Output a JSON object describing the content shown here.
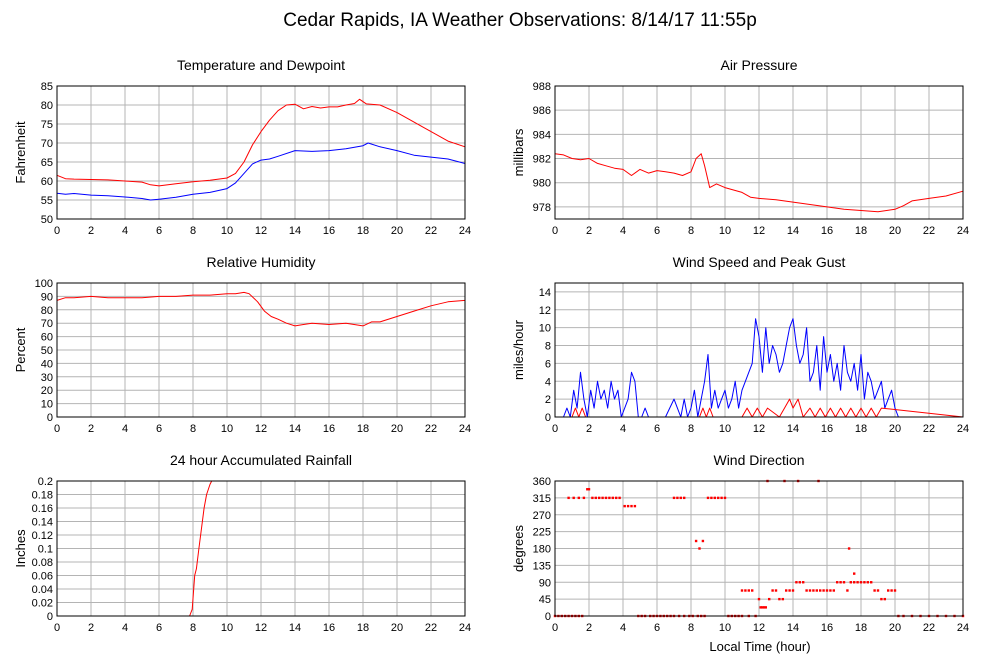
{
  "page": {
    "title": "Cedar Rapids, IA Weather Observations: 8/14/17 11:55p",
    "xlabel": "Local Time (hour)"
  },
  "colors": {
    "red": "#ff0000",
    "blue": "#0000ff",
    "grid": "#b4b4b4"
  },
  "chart_data": [
    {
      "id": "temp",
      "type": "line",
      "title": "Temperature and Dewpoint",
      "xlabel": "",
      "ylabel": "Fahrenheit",
      "xlim": [
        0,
        24
      ],
      "ylim": [
        50,
        85
      ],
      "xticks": [
        0,
        2,
        4,
        6,
        8,
        10,
        12,
        14,
        16,
        18,
        20,
        22,
        24
      ],
      "yticks": [
        50,
        55,
        60,
        65,
        70,
        75,
        80,
        85
      ],
      "series": [
        {
          "color": "#ff0000",
          "x": [
            0,
            0.5,
            1,
            2,
            3,
            4,
            5,
            5.5,
            6,
            7,
            8,
            9,
            10,
            10.5,
            11,
            11.5,
            12,
            12.5,
            13,
            13.5,
            14,
            14.5,
            15,
            15.5,
            16,
            16.5,
            17,
            17.5,
            17.8,
            18.2,
            19,
            20,
            21,
            22,
            23,
            24
          ],
          "y": [
            61.5,
            60.6,
            60.5,
            60.4,
            60.3,
            60,
            59.7,
            59,
            58.7,
            59.3,
            59.8,
            60.2,
            60.8,
            62,
            65,
            69.5,
            73,
            76,
            78.5,
            80,
            80.2,
            79,
            79.6,
            79.2,
            79.5,
            79.5,
            80,
            80.4,
            81.5,
            80.3,
            80,
            78,
            75.5,
            73,
            70.5,
            69
          ]
        },
        {
          "color": "#0000ff",
          "x": [
            0,
            0.5,
            1,
            2,
            3,
            4,
            5,
            5.5,
            6,
            7,
            8,
            9,
            10,
            10.5,
            11,
            11.5,
            12,
            12.5,
            13,
            14,
            15,
            16,
            17,
            18,
            18.3,
            19,
            20,
            21,
            22,
            23,
            24
          ],
          "y": [
            56.8,
            56.5,
            56.7,
            56.3,
            56.1,
            55.8,
            55.4,
            55,
            55.2,
            55.7,
            56.5,
            57,
            58,
            59.5,
            62,
            64.5,
            65.5,
            65.8,
            66.5,
            68,
            67.8,
            68,
            68.5,
            69.3,
            70,
            69,
            68,
            66.8,
            66.3,
            65.8,
            64.6
          ]
        }
      ]
    },
    {
      "id": "pressure",
      "type": "line",
      "title": "Air Pressure",
      "xlabel": "",
      "ylabel": "millibars",
      "xlim": [
        0,
        24
      ],
      "ylim": [
        977,
        988
      ],
      "xticks": [
        0,
        2,
        4,
        6,
        8,
        10,
        12,
        14,
        16,
        18,
        20,
        22,
        24
      ],
      "yticks": [
        978,
        980,
        982,
        984,
        986,
        988
      ],
      "series": [
        {
          "color": "#ff0000",
          "x": [
            0,
            0.5,
            1,
            1.5,
            2,
            2.5,
            3,
            3.5,
            4,
            4.5,
            5,
            5.5,
            6,
            6.5,
            7,
            7.5,
            8,
            8.3,
            8.6,
            8.8,
            9.1,
            9.5,
            10,
            10.5,
            11,
            11.5,
            12,
            13,
            14,
            15,
            16,
            17,
            18,
            19,
            20,
            20.5,
            21,
            22,
            23,
            24
          ],
          "y": [
            982.4,
            982.3,
            982,
            981.9,
            982,
            981.6,
            981.4,
            981.2,
            981.1,
            980.6,
            981.1,
            980.8,
            981,
            980.9,
            980.8,
            980.6,
            980.9,
            982,
            982.4,
            981.4,
            979.6,
            979.9,
            979.6,
            979.4,
            979.2,
            978.8,
            978.7,
            978.6,
            978.4,
            978.2,
            978,
            977.8,
            977.7,
            977.6,
            977.8,
            978.1,
            978.5,
            978.7,
            978.9,
            979.3
          ]
        }
      ]
    },
    {
      "id": "humidity",
      "type": "line",
      "title": "Relative Humidity",
      "xlabel": "",
      "ylabel": "Percent",
      "xlim": [
        0,
        24
      ],
      "ylim": [
        0,
        100
      ],
      "xticks": [
        0,
        2,
        4,
        6,
        8,
        10,
        12,
        14,
        16,
        18,
        20,
        22,
        24
      ],
      "yticks": [
        0,
        10,
        20,
        30,
        40,
        50,
        60,
        70,
        80,
        90,
        100
      ],
      "series": [
        {
          "color": "#ff0000",
          "x": [
            0,
            0.5,
            1,
            2,
            3,
            4,
            5,
            6,
            7,
            8,
            9,
            10,
            10.5,
            11,
            11.3,
            11.8,
            12.2,
            12.6,
            13,
            13.5,
            14,
            14.5,
            15,
            16,
            17,
            18,
            18.5,
            19,
            20,
            21,
            22,
            23,
            24
          ],
          "y": [
            87,
            89,
            89,
            90,
            89,
            89,
            89,
            90,
            90,
            91,
            91,
            92,
            92,
            93,
            92,
            86,
            79,
            75,
            73,
            70,
            68,
            69,
            70,
            69,
            70,
            68,
            71,
            71,
            75,
            79,
            83,
            86,
            87
          ]
        }
      ]
    },
    {
      "id": "wind",
      "type": "line",
      "title": "Wind Speed and Peak Gust",
      "xlabel": "",
      "ylabel": "miles/hour",
      "xlim": [
        0,
        24
      ],
      "ylim": [
        0,
        15
      ],
      "xticks": [
        0,
        2,
        4,
        6,
        8,
        10,
        12,
        14,
        16,
        18,
        20,
        22,
        24
      ],
      "yticks": [
        0,
        2,
        4,
        6,
        8,
        10,
        12,
        14
      ],
      "series": [
        {
          "color": "#0000ff",
          "x": [
            0,
            0.5,
            0.7,
            0.9,
            1.1,
            1.3,
            1.5,
            1.7,
            1.9,
            2.1,
            2.3,
            2.5,
            2.7,
            2.9,
            3.1,
            3.3,
            3.5,
            3.7,
            3.9,
            4.1,
            4.3,
            4.5,
            4.7,
            4.9,
            5.1,
            5.3,
            5.5,
            6,
            6.5,
            7,
            7.2,
            7.4,
            7.6,
            7.8,
            8,
            8.2,
            8.4,
            8.6,
            8.8,
            9,
            9.2,
            9.4,
            9.6,
            9.8,
            10,
            10.2,
            10.4,
            10.6,
            10.8,
            11,
            11.2,
            11.4,
            11.6,
            11.8,
            12,
            12.2,
            12.4,
            12.6,
            12.8,
            13,
            13.2,
            13.4,
            13.6,
            13.8,
            14,
            14.2,
            14.4,
            14.6,
            14.8,
            15,
            15.2,
            15.4,
            15.6,
            15.8,
            16,
            16.2,
            16.4,
            16.6,
            16.8,
            17,
            17.2,
            17.4,
            17.6,
            17.8,
            18,
            18.2,
            18.4,
            18.6,
            18.8,
            19,
            19.2,
            19.4,
            19.6,
            19.8,
            20,
            20.2,
            21,
            22,
            23,
            24
          ],
          "y": [
            0,
            0,
            1,
            0,
            3,
            1,
            5,
            2,
            0,
            3,
            1,
            4,
            2,
            3,
            1,
            4,
            2,
            3,
            0,
            1,
            2,
            5,
            4,
            0,
            0,
            1,
            0,
            0,
            0,
            2,
            1,
            0,
            2,
            0,
            1,
            3,
            0,
            2,
            4,
            7,
            1,
            3,
            1,
            2,
            3,
            1,
            2,
            4,
            1,
            3,
            4,
            5,
            6,
            11,
            9,
            5,
            10,
            6,
            8,
            7,
            5,
            6,
            8,
            10,
            11,
            8,
            6,
            7,
            10,
            4,
            5,
            8,
            3,
            9,
            5,
            7,
            4,
            6,
            3,
            8,
            5,
            4,
            6,
            3,
            7,
            2,
            5,
            4,
            2,
            3,
            4,
            1,
            2,
            3,
            1,
            0,
            0,
            0,
            0,
            0
          ]
        },
        {
          "color": "#ff0000",
          "x": [
            0,
            1,
            1.2,
            1.4,
            1.6,
            1.8,
            2,
            8.5,
            8.7,
            8.9,
            9.1,
            9.3,
            9.5,
            11,
            11.3,
            11.6,
            11.9,
            12.2,
            12.5,
            13.2,
            13.5,
            13.8,
            14,
            14.3,
            14.6,
            15,
            15.3,
            15.6,
            15.9,
            16.2,
            16.5,
            16.8,
            17.1,
            17.4,
            17.7,
            18,
            18.3,
            18.6,
            18.9,
            19.2,
            24
          ],
          "y": [
            0,
            0,
            1,
            0,
            1,
            0,
            0,
            0,
            1,
            0,
            1,
            0,
            0,
            0,
            1,
            0,
            1,
            0,
            1,
            0,
            1,
            2,
            1,
            2,
            0,
            1,
            0,
            1,
            0,
            1,
            0,
            1,
            0,
            1,
            0,
            1,
            0,
            1,
            0,
            1,
            0
          ]
        }
      ]
    },
    {
      "id": "rain",
      "type": "line",
      "title": "24 hour Accumulated Rainfall",
      "xlabel": "",
      "ylabel": "Inches",
      "xlim": [
        0,
        24
      ],
      "ylim": [
        0,
        0.2
      ],
      "xticks": [
        0,
        2,
        4,
        6,
        8,
        10,
        12,
        14,
        16,
        18,
        20,
        22,
        24
      ],
      "yticks": [
        0,
        0.02,
        0.04,
        0.06,
        0.08,
        0.1,
        0.12,
        0.14,
        0.16,
        0.18,
        0.2
      ],
      "series": [
        {
          "color": "#ff0000",
          "x": [
            0,
            7.8,
            7.95,
            8.1,
            8.2,
            8.35,
            8.5,
            8.65,
            8.8,
            9.0,
            9.1
          ],
          "y": [
            0,
            0,
            0.01,
            0.06,
            0.07,
            0.1,
            0.13,
            0.16,
            0.18,
            0.195,
            0.2
          ]
        }
      ]
    },
    {
      "id": "direction",
      "type": "scatter",
      "title": "Wind Direction",
      "xlabel": "",
      "ylabel": "degrees",
      "xlim": [
        0,
        24
      ],
      "ylim": [
        0,
        360
      ],
      "xticks": [
        0,
        2,
        4,
        6,
        8,
        10,
        12,
        14,
        16,
        18,
        20,
        22,
        24
      ],
      "yticks": [
        0,
        45,
        90,
        135,
        180,
        225,
        270,
        315,
        360
      ],
      "series": [
        {
          "color": "#ff0000",
          "x": [
            0,
            0.2,
            0.4,
            0.6,
            0.8,
            1.0,
            1.2,
            1.4,
            1.6,
            0.8,
            1.1,
            1.4,
            1.7,
            1.9,
            2.0,
            2.2,
            2.4,
            2.6,
            2.8,
            3.0,
            3.2,
            3.4,
            3.6,
            3.8,
            4.1,
            4.3,
            4.5,
            4.7,
            4.9,
            5.1,
            5.3,
            5.6,
            5.8,
            6.0,
            6.2,
            6.4,
            6.6,
            6.8,
            7.0,
            7.2,
            7.4,
            7.6,
            7.0,
            7.3,
            7.6,
            7.9,
            8.1,
            8.3,
            8.5,
            8.7,
            8.4,
            8.6,
            8.8,
            9.0,
            9.2,
            9.4,
            9.6,
            9.8,
            10.0,
            10.2,
            10.4,
            10.6,
            10.8,
            11.0,
            11.2,
            11.4,
            11.6,
            11.0,
            11.4,
            11.8,
            12.0,
            12.2,
            12.4,
            12.6,
            12.8,
            13.0,
            13.2,
            13.4,
            13.6,
            13.8,
            14.0,
            14.2,
            14.4,
            14.6,
            14.8,
            15.0,
            15.2,
            15.4,
            15.6,
            15.8,
            16.0,
            16.2,
            16.4,
            16.6,
            16.8,
            17.0,
            17.2,
            17.4,
            17.6,
            17.8,
            18.0,
            18.2,
            18.4,
            18.6,
            18.8,
            19.0,
            19.2,
            19.4,
            19.6,
            19.8,
            20.0,
            20.2,
            20.5,
            21,
            21.5,
            22,
            22.5,
            23,
            23.5,
            24,
            12.5,
            13.5,
            14.3,
            15.5,
            17.3,
            17.6,
            12.1,
            12.3
          ],
          "y": [
            0,
            0,
            0,
            0,
            0,
            0,
            0,
            0,
            0,
            315,
            315,
            315,
            315,
            338,
            338,
            315,
            315,
            315,
            315,
            315,
            315,
            315,
            315,
            315,
            293,
            293,
            293,
            293,
            0,
            0,
            0,
            0,
            0,
            0,
            0,
            0,
            0,
            0,
            315,
            315,
            315,
            315,
            0,
            0,
            0,
            0,
            0,
            200,
            180,
            200,
            0,
            0,
            0,
            315,
            315,
            315,
            315,
            315,
            315,
            0,
            0,
            0,
            0,
            68,
            68,
            68,
            68,
            0,
            0,
            0,
            45,
            23,
            23,
            45,
            68,
            68,
            45,
            45,
            68,
            68,
            68,
            90,
            90,
            90,
            68,
            68,
            68,
            68,
            68,
            68,
            68,
            68,
            68,
            90,
            90,
            90,
            68,
            90,
            90,
            90,
            90,
            90,
            90,
            90,
            68,
            68,
            45,
            45,
            68,
            68,
            68,
            0,
            0,
            0,
            0,
            0,
            0,
            0,
            0,
            0,
            360,
            360,
            360,
            360,
            180,
            113,
            23,
            23
          ]
        }
      ]
    }
  ]
}
